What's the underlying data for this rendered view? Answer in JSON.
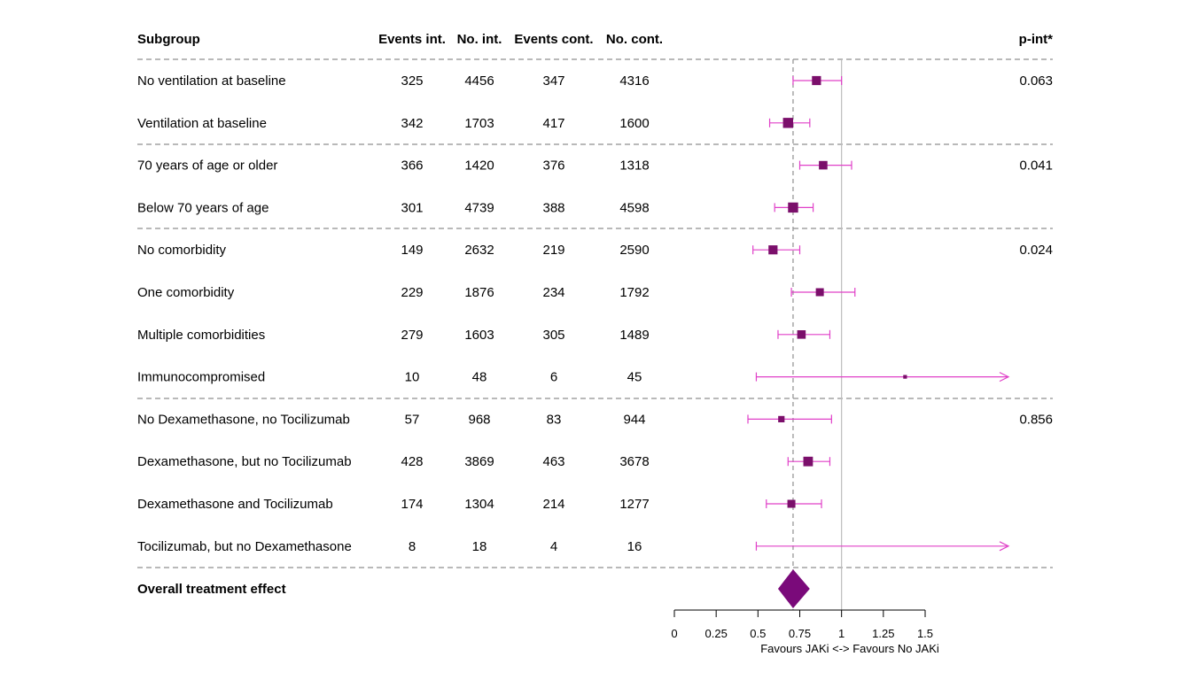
{
  "chart_data": {
    "type": "forest",
    "columns": {
      "subgroup": "Subgroup",
      "events_int": "Events int.",
      "no_int": "No. int.",
      "events_cont": "Events cont.",
      "no_cont": "No. cont.",
      "p_int": "p-int*"
    },
    "rows": [
      {
        "label": "No ventilation at baseline",
        "events_int": "325",
        "no_int": "4456",
        "events_cont": "347",
        "no_cont": "4316",
        "p_int": "0.063",
        "est": 0.85,
        "lo": 0.71,
        "hi": 1.0,
        "weight": 0.6
      },
      {
        "label": "Ventilation at baseline",
        "events_int": "342",
        "no_int": "1703",
        "events_cont": "417",
        "no_cont": "1600",
        "p_int": "",
        "est": 0.68,
        "lo": 0.57,
        "hi": 0.81,
        "weight": 0.7
      },
      {
        "label": "70 years of age or older",
        "events_int": "366",
        "no_int": "1420",
        "events_cont": "376",
        "no_cont": "1318",
        "p_int": "0.041",
        "est": 0.89,
        "lo": 0.75,
        "hi": 1.06,
        "weight": 0.55
      },
      {
        "label": "Below 70 years of age",
        "events_int": "301",
        "no_int": "4739",
        "events_cont": "388",
        "no_cont": "4598",
        "p_int": "",
        "est": 0.71,
        "lo": 0.6,
        "hi": 0.83,
        "weight": 0.7
      },
      {
        "label": "No comorbidity",
        "events_int": "149",
        "no_int": "2632",
        "events_cont": "219",
        "no_cont": "2590",
        "p_int": "0.024",
        "est": 0.59,
        "lo": 0.47,
        "hi": 0.75,
        "weight": 0.6
      },
      {
        "label": "One comorbidity",
        "events_int": "229",
        "no_int": "1876",
        "events_cont": "234",
        "no_cont": "1792",
        "p_int": "",
        "est": 0.87,
        "lo": 0.7,
        "hi": 1.08,
        "weight": 0.5
      },
      {
        "label": "Multiple comorbidities",
        "events_int": "279",
        "no_int": "1603",
        "events_cont": "305",
        "no_cont": "1489",
        "p_int": "",
        "est": 0.76,
        "lo": 0.62,
        "hi": 0.93,
        "weight": 0.55
      },
      {
        "label": "Immunocompromised",
        "events_int": "10",
        "no_int": "48",
        "events_cont": "6",
        "no_cont": "45",
        "p_int": "",
        "est": 1.38,
        "lo": 0.49,
        "hi": 3.9,
        "weight": 0.1
      },
      {
        "label": "No Dexamethasone, no Tocilizumab",
        "events_int": "57",
        "no_int": "968",
        "events_cont": "83",
        "no_cont": "944",
        "p_int": "0.856",
        "est": 0.64,
        "lo": 0.44,
        "hi": 0.94,
        "weight": 0.35
      },
      {
        "label": "Dexamethasone, but no Tocilizumab",
        "events_int": "428",
        "no_int": "3869",
        "events_cont": "463",
        "no_cont": "3678",
        "p_int": "",
        "est": 0.8,
        "lo": 0.68,
        "hi": 0.93,
        "weight": 0.65
      },
      {
        "label": "Dexamethasone and Tocilizumab",
        "events_int": "174",
        "no_int": "1304",
        "events_cont": "214",
        "no_cont": "1277",
        "p_int": "",
        "est": 0.7,
        "lo": 0.55,
        "hi": 0.88,
        "weight": 0.5
      },
      {
        "label": "Tocilizumab, but no Dexamethasone",
        "events_int": "8",
        "no_int": "18",
        "events_cont": "4",
        "no_cont": "16",
        "p_int": "",
        "est": null,
        "lo": 0.49,
        "hi": 5.0,
        "weight": 0
      }
    ],
    "overall": {
      "label": "Overall treatment effect",
      "est": 0.71,
      "lo": 0.62,
      "hi": 0.81
    },
    "null_value": 1,
    "x_ticks": [
      "0",
      "0.25",
      "0.5",
      "0.75",
      "1",
      "1.25",
      "1.5"
    ],
    "xlim": [
      0,
      1.5
    ],
    "xlabel": "Favours JAKi <-> Favours No JAKi",
    "colors": {
      "point": "#7b0f6b",
      "ci": "#e040c8",
      "diamond": "#7a0a7a",
      "dashed": "#8f8f8f",
      "null_line": "#bdbdbd"
    }
  }
}
